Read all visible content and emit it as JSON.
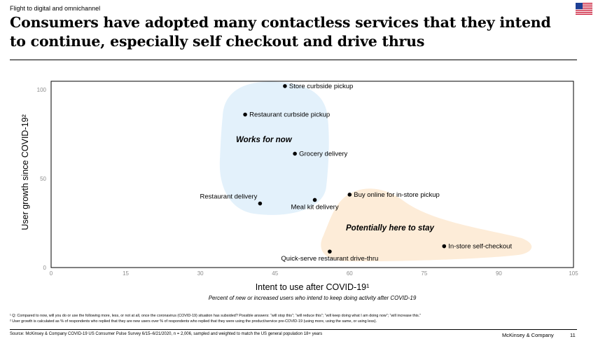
{
  "header": {
    "section_label": "Flight to digital and omnichannel",
    "title_line1": "Consumers have adopted many contactless services that they intend",
    "title_line2": "to continue, especially self checkout and drive thrus"
  },
  "colors": {
    "cluster_blue": "#e3f1fb",
    "cluster_orange": "#fdecd8",
    "plot_border": "#000000",
    "tick_text": "#8c8c8c",
    "point": "#000000"
  },
  "chart_data": {
    "type": "scatter",
    "xlabel": "Intent to use after COVID-19¹",
    "xsublabel": "Percent of new or increased users who intend to keep doing activity after COVID-19",
    "ylabel": "User growth since COVID-19²",
    "xlim": [
      0,
      105
    ],
    "ylim": [
      0,
      100
    ],
    "xticks": [
      0,
      15,
      30,
      45,
      60,
      75,
      90,
      105
    ],
    "yticks": [
      0,
      50,
      100
    ],
    "grid": false,
    "points": [
      {
        "label": "Store curbside pickup",
        "x": 47,
        "y": 102
      },
      {
        "label": "Restaurant curbside pickup",
        "x": 39,
        "y": 86
      },
      {
        "label": "Grocery delivery",
        "x": 49,
        "y": 64
      },
      {
        "label": "Restaurant delivery",
        "x": 42,
        "y": 36
      },
      {
        "label": "Meal kit delivery",
        "x": 53,
        "y": 38
      },
      {
        "label": "Buy online for in-store pickup",
        "x": 60,
        "y": 41
      },
      {
        "label": "In-store self-checkout",
        "x": 79,
        "y": 12
      },
      {
        "label": "Quick-serve restaurant drive-thru",
        "x": 56,
        "y": 9
      }
    ],
    "annotations": [
      {
        "text": "Works for now"
      },
      {
        "text": "Potentially here to stay"
      }
    ]
  },
  "footnotes": {
    "note1": "¹ Q: Compared to now, will you do or use the following more, less, or not at all, once the coronavirus (COVID-19) situation has subsided? Possible answers: “will stop this”; “will reduce this”; “will keep doing what I am doing now”; “will increase this.”",
    "note2": "² User growth is calculated as % of respondents who replied that they are new users over % of respondents who replied that they were using the product/service pre-COVID-19 (using more, using the same, or using less)."
  },
  "footer": {
    "source": "Source: McKinsey & Company COVID-19 US Consumer Pulse Survey 6/15–6/21/2020, n = 2,006, sampled and weighted to match the US general population 18+ years",
    "brand": "McKinsey & Company",
    "page_number": "11"
  }
}
